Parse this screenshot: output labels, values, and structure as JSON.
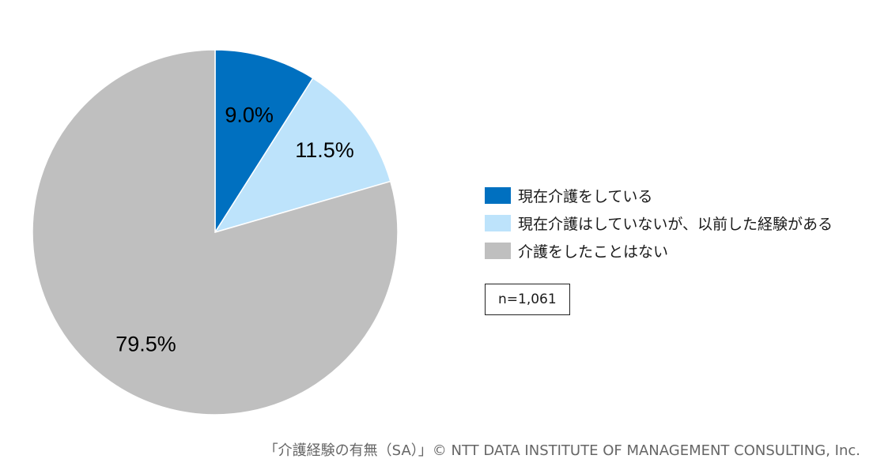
{
  "chart_data": {
    "type": "pie",
    "categories": [
      "現在介護をしている",
      "現在介護はしていないが、以前した経験がある",
      "介護をしたことはない"
    ],
    "values": [
      9.0,
      11.5,
      79.5
    ],
    "value_labels": [
      "9.0%",
      "11.5%",
      "79.5%"
    ],
    "colors": [
      "#0070C0",
      "#BDE3FB",
      "#BFBFBF"
    ],
    "label_colors": [
      "#ffffff",
      "#000000",
      "#000000"
    ],
    "legend_placement": "right",
    "start_angle": "12 o'clock",
    "direction": "clockwise"
  },
  "legend": {
    "items": [
      {
        "label": "現在介護をしている",
        "color": "#0070C0"
      },
      {
        "label": "現在介護はしていないが、以前した経験がある",
        "color": "#BDE3FB"
      },
      {
        "label": "介護をしたことはない",
        "color": "#BFBFBF"
      }
    ]
  },
  "sample_size": "n=1,061",
  "footer": "「介護経験の有無（SA）」© NTT DATA INSTITUTE OF MANAGEMENT CONSULTING, Inc."
}
